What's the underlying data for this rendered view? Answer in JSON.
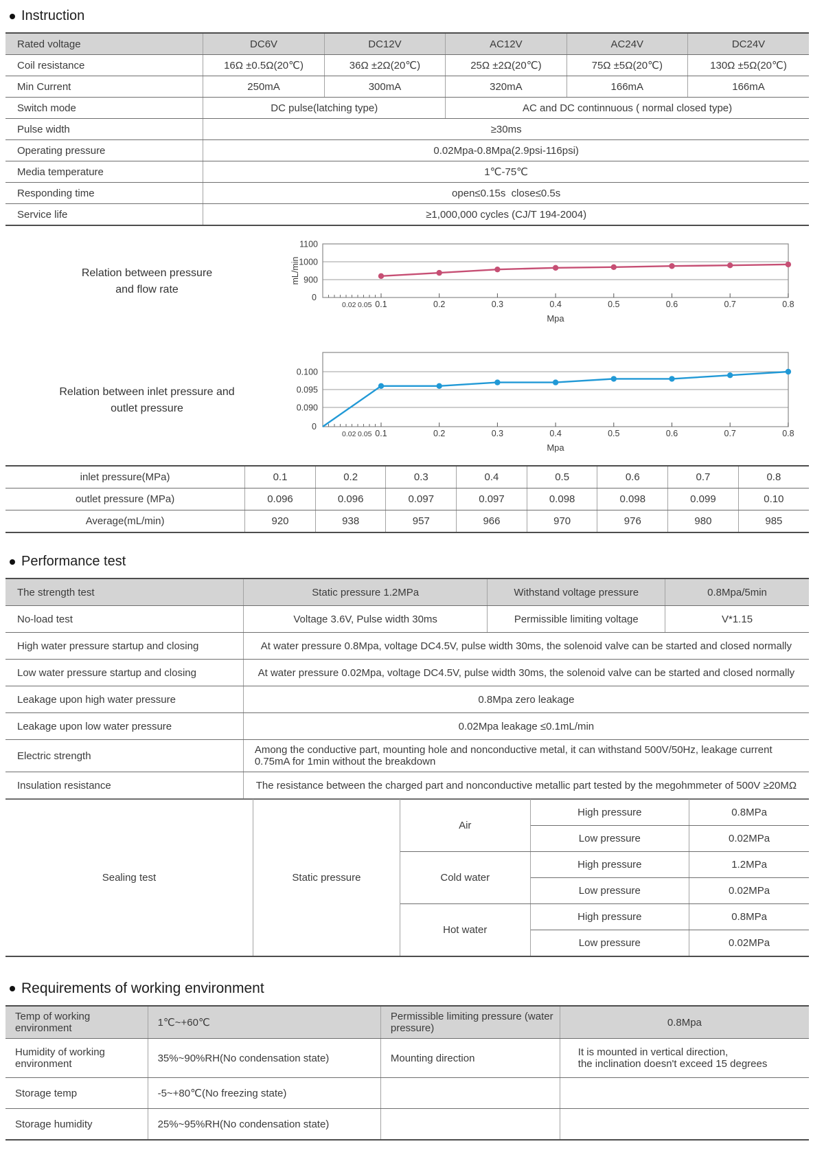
{
  "headings": {
    "instruction": "Instruction",
    "performance": "Performance test",
    "environment": "Requirements of working environment"
  },
  "spec": {
    "rated_voltage": {
      "label": "Rated voltage",
      "c": [
        "DC6V",
        "DC12V",
        "AC12V",
        "AC24V",
        "DC24V"
      ]
    },
    "coil_resistance": {
      "label": "Coil resistance",
      "c": [
        "16Ω ±0.5Ω(20℃)",
        "36Ω ±2Ω(20℃)",
        "25Ω ±2Ω(20℃)",
        "75Ω ±5Ω(20℃)",
        "130Ω ±5Ω(20℃)"
      ]
    },
    "min_current": {
      "label": "Min Current",
      "c": [
        "250mA",
        "300mA",
        "320mA",
        "166mA",
        "166mA"
      ]
    },
    "switch_mode": {
      "label": "Switch mode",
      "dc": "DC pulse(latching type)",
      "ac": "AC and DC continnuous ( normal closed type)"
    },
    "pulse_width": {
      "label": "Pulse width",
      "v": "≥30ms"
    },
    "operating_pressure": {
      "label": "Operating pressure",
      "v": "0.02Mpa-0.8Mpa(2.9psi-116psi)"
    },
    "media_temperature": {
      "label": "Media temperature",
      "v": "1℃-75℃"
    },
    "responding_time": {
      "label": "Responding time",
      "v": "open≤0.15s  close≤0.5s"
    },
    "service_life": {
      "label": "Service life",
      "v": "≥1,000,000 cycles (CJ/T 194-2004)"
    }
  },
  "chart_data": [
    {
      "type": "line",
      "title_lines": [
        "Relation between pressure",
        "and flow rate"
      ],
      "ylabel": "mL/min",
      "xlabel": "Mpa",
      "x": [
        0.1,
        0.2,
        0.3,
        0.4,
        0.5,
        0.6,
        0.7,
        0.8
      ],
      "values": [
        920,
        938,
        957,
        966,
        970,
        976,
        980,
        985
      ],
      "yticks": [
        {
          "v": 900,
          "label": "900"
        },
        {
          "v": 1000,
          "label": "1000"
        },
        {
          "v": 1100,
          "label": "1100"
        }
      ],
      "origin_label": "0",
      "y_axis_break": true,
      "minor_xticks": [
        {
          "label": "0.02",
          "f": 0.45
        },
        {
          "label": "0.05",
          "f": 0.72
        }
      ],
      "xtick_labels": [
        "0.1",
        "0.2",
        "0.3",
        "0.4",
        "0.5",
        "0.6",
        "0.7",
        "0.8"
      ],
      "from_origin": false,
      "grid": true,
      "legend": "none",
      "color": "#c64f74"
    },
    {
      "type": "line",
      "title_lines": [
        "Relation between inlet pressure and",
        "outlet pressure"
      ],
      "ylabel": "",
      "xlabel": "Mpa",
      "x": [
        0.1,
        0.2,
        0.3,
        0.4,
        0.5,
        0.6,
        0.7,
        0.8
      ],
      "values": [
        0.096,
        0.096,
        0.097,
        0.097,
        0.098,
        0.098,
        0.099,
        0.1
      ],
      "yticks": [
        {
          "v": 0.09,
          "label": "0.090"
        },
        {
          "v": 0.095,
          "label": "0.095"
        },
        {
          "v": 0.1,
          "label": "0.100"
        }
      ],
      "origin_label": "0",
      "y_axis_break": true,
      "minor_xticks": [
        {
          "label": "0.02",
          "f": 0.45
        },
        {
          "label": "0.05",
          "f": 0.72
        }
      ],
      "xtick_labels": [
        "0.1",
        "0.2",
        "0.3",
        "0.4",
        "0.5",
        "0.6",
        "0.7",
        "0.8"
      ],
      "from_origin": true,
      "grid": true,
      "legend": "none",
      "color": "#2199d6"
    }
  ],
  "pressure_table": {
    "inlet": {
      "label": "inlet pressure(MPa)",
      "c": [
        "0.1",
        "0.2",
        "0.3",
        "0.4",
        "0.5",
        "0.6",
        "0.7",
        "0.8"
      ]
    },
    "outlet": {
      "label": "outlet pressure (MPa)",
      "c": [
        "0.096",
        "0.096",
        "0.097",
        "0.097",
        "0.098",
        "0.098",
        "0.099",
        "0.10"
      ]
    },
    "average": {
      "label": "Average(mL/min)",
      "c": [
        "920",
        "938",
        "957",
        "966",
        "970",
        "976",
        "980",
        "985"
      ]
    }
  },
  "performance": {
    "strength": {
      "label": "The strength test",
      "c1": "Static pressure 1.2MPa",
      "c2": "Withstand voltage pressure",
      "c3": "0.8Mpa/5min"
    },
    "no_load": {
      "label": "No-load test",
      "c1": "Voltage 3.6V, Pulse width 30ms",
      "c2": "Permissible limiting voltage",
      "c3": "V*1.15"
    },
    "high_water": {
      "label": "High water pressure startup and closing",
      "v": "At water pressure 0.8Mpa, voltage DC4.5V, pulse width 30ms, the solenoid valve can be started and closed normally"
    },
    "low_water": {
      "label": "Low water pressure startup and closing",
      "v": "At water pressure 0.02Mpa, voltage DC4.5V, pulse width 30ms, the solenoid valve can be started and closed normally"
    },
    "leak_high": {
      "label": "Leakage upon high water pressure",
      "v": "0.8Mpa zero leakage"
    },
    "leak_low": {
      "label": "Leakage upon low water pressure",
      "v": "0.02Mpa leakage ≤0.1mL/min"
    },
    "electric": {
      "label": "Electric strength",
      "v": "Among the conductive part, mounting hole and nonconductive metal, it can withstand 500V/50Hz, leakage current 0.75mA for 1min without the breakdown"
    },
    "insulation": {
      "label": "Insulation resistance",
      "v": "The resistance between the charged part and nonconductive metallic part tested by the megohmmeter of 500V ≥20MΩ"
    },
    "sealing": {
      "label": "Sealing test",
      "method": "Static pressure",
      "air": {
        "name": "Air",
        "high_label": "High pressure",
        "high": "0.8MPa",
        "low_label": "Low pressure",
        "low": "0.02MPa"
      },
      "cold": {
        "name": "Cold water",
        "high_label": "High pressure",
        "high": "1.2MPa",
        "low_label": "Low pressure",
        "low": "0.02MPa"
      },
      "hot": {
        "name": "Hot water",
        "high_label": "High pressure",
        "high": "0.8MPa",
        "low_label": "Low pressure",
        "low": "0.02MPa"
      }
    }
  },
  "environment": {
    "r1": {
      "c1": "Temp of working environment",
      "c2": "1℃~+60℃",
      "c3": "Permissible limiting pressure (water pressure)",
      "c4": "0.8Mpa"
    },
    "r2": {
      "c1": "Humidity of working environment",
      "c2": "35%~90%RH(No condensation state)",
      "c3": "Mounting direction",
      "c4a": "It is mounted in vertical direction,",
      "c4b": "the inclination doesn't exceed 15 degrees"
    },
    "r3": {
      "c1": "Storage temp",
      "c2": "-5~+80℃(No freezing state)",
      "c3": "",
      "c4": ""
    },
    "r4": {
      "c1": "Storage humidity",
      "c2": "25%~95%RH(No condensation state)",
      "c3": "",
      "c4": ""
    }
  },
  "colors": {
    "flow_line": "#c64f74",
    "outlet_line": "#2199d6",
    "header_bg": "#d4d4d4"
  }
}
